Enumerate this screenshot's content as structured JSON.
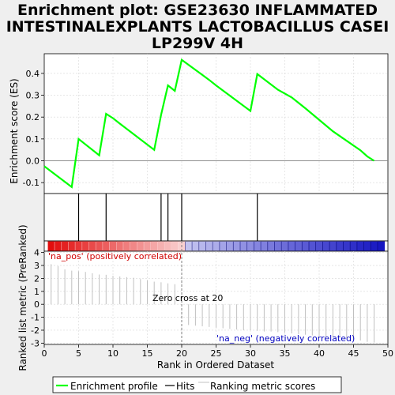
{
  "chart_data": {
    "type": "line",
    "title_lines": [
      "Enrichment plot: GSE23630 INFLAMMATED",
      "INTESTINALEXPLANTS LACTOBACILLUS CASEI",
      "LP299V 4H"
    ],
    "xlabel": "Rank in Ordered Dataset",
    "ylabel_top": "Enrichment score (ES)",
    "ylabel_bottom": "Ranked list metric (PreRanked)",
    "xlim": [
      0,
      50
    ],
    "x_ticks": [
      0,
      5,
      10,
      15,
      20,
      25,
      30,
      35,
      40,
      45,
      50
    ],
    "es_ylim": [
      -0.15,
      0.49
    ],
    "es_ticks": [
      -0.1,
      0.0,
      0.1,
      0.2,
      0.3,
      0.4
    ],
    "es_tick_labels": [
      "-0.1",
      "0.0",
      "0.1",
      "0.2",
      "0.3",
      "0.4"
    ],
    "metric_ylim": [
      -3.1,
      4.1
    ],
    "metric_ticks": [
      -3,
      -2,
      -1,
      0,
      1,
      2,
      3,
      4
    ],
    "enrichment_profile": {
      "name": "Enrichment profile",
      "color": "#00ff00",
      "x": [
        0,
        4,
        5,
        8,
        9,
        10,
        11,
        16,
        17,
        18,
        19,
        20,
        24,
        25,
        30,
        31,
        34,
        36,
        38,
        42,
        46,
        47,
        48
      ],
      "y": [
        -0.025,
        -0.12,
        0.1,
        0.025,
        0.215,
        0.195,
        0.17,
        0.05,
        0.21,
        0.345,
        0.32,
        0.462,
        0.37,
        0.345,
        0.228,
        0.397,
        0.325,
        0.29,
        0.24,
        0.135,
        0.048,
        0.02,
        0.0
      ]
    },
    "hits": {
      "name": "Hits",
      "positions": [
        5,
        9,
        17,
        18,
        20,
        31
      ]
    },
    "ranking_metric": {
      "name": "Ranking metric scores",
      "x": [
        1,
        2,
        3,
        4,
        5,
        6,
        7,
        8,
        9,
        10,
        11,
        12,
        13,
        14,
        15,
        16,
        17,
        18,
        19,
        21,
        22,
        23,
        24,
        25,
        26,
        27,
        28,
        29,
        30,
        31,
        32,
        33,
        34,
        35,
        36,
        37,
        38,
        39,
        40,
        41,
        42,
        43,
        44,
        45,
        46,
        47,
        48
      ],
      "y": [
        3.1,
        2.95,
        2.7,
        2.6,
        2.55,
        2.5,
        2.4,
        2.3,
        2.28,
        2.2,
        2.15,
        2.1,
        2.05,
        1.95,
        1.85,
        1.75,
        1.7,
        1.62,
        1.55,
        -1.6,
        -1.65,
        -1.7,
        -1.75,
        -1.8,
        -1.85,
        -1.9,
        -1.95,
        -2.0,
        -2.0,
        -2.05,
        -2.1,
        -2.1,
        -2.15,
        -2.2,
        -2.25,
        -2.3,
        -2.35,
        -2.4,
        -2.45,
        -2.5,
        -2.5,
        -2.55,
        -2.6,
        -2.7,
        -2.8,
        -2.9,
        -2.95
      ]
    },
    "zero_cross": 20,
    "zero_cross_label": "Zero cross at 20",
    "pos_label": "'na_pos' (positively correlated)",
    "neg_label": "'na_neg' (negatively correlated)",
    "legend": [
      "Enrichment profile",
      "Hits",
      "Ranking metric scores"
    ],
    "colors": {
      "profile": "#00ff00",
      "hit": "#000000",
      "metric": "#c0c0c0",
      "pos_text": "#d00000",
      "neg_text": "#0000c0",
      "heat_red": "#e00000",
      "heat_blue": "#1010c0"
    }
  }
}
